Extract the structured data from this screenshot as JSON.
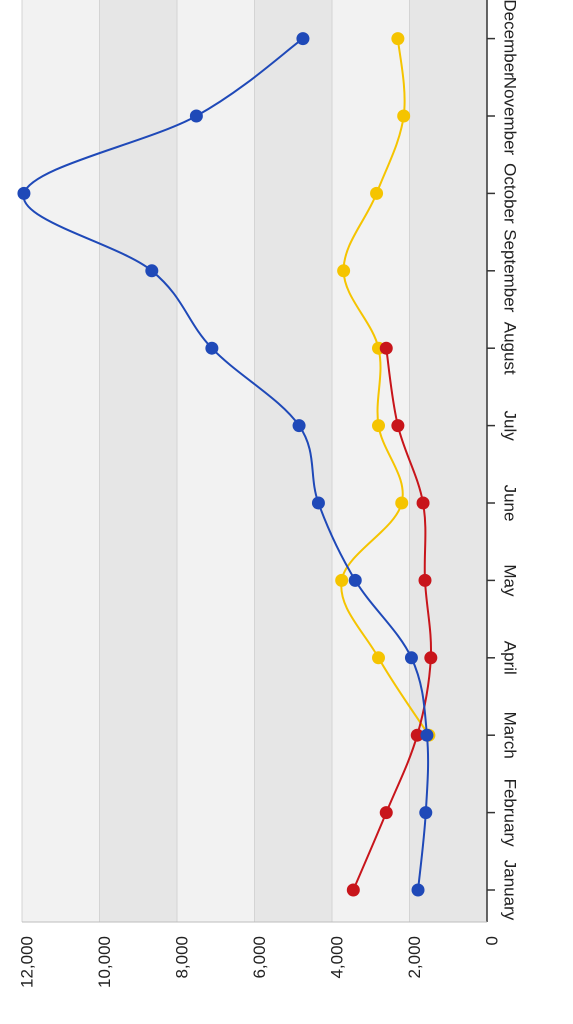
{
  "chart_data": {
    "type": "line",
    "orientation": "rotated-90-clockwise",
    "categories": [
      "January",
      "February",
      "March",
      "April",
      "May",
      "June",
      "July",
      "August",
      "September",
      "October",
      "November",
      "December"
    ],
    "yticks": [
      "0",
      "2,000",
      "4,000",
      "6,000",
      "8,000",
      "10,000",
      "12,000"
    ],
    "ylim": [
      0,
      12000
    ],
    "grid": true,
    "series": [
      {
        "color": "#1f49b8",
        "values": [
          1780,
          1580,
          1550,
          1950,
          3400,
          4350,
          4850,
          7100,
          8650,
          11950,
          7500,
          4750
        ],
        "curve": "smooth"
      },
      {
        "color": "#f5c400",
        "values": [
          null,
          null,
          1500,
          2800,
          3750,
          2200,
          2800,
          2800,
          3700,
          2850,
          2150,
          2300
        ],
        "curve": "smooth"
      },
      {
        "color": "#c8151b",
        "values": [
          3450,
          2600,
          1800,
          1450,
          1600,
          1650,
          2300,
          2600,
          null,
          null,
          null,
          null
        ],
        "curve": "smooth"
      }
    ],
    "colors": {
      "plot_band_light": "#f2f2f2",
      "plot_band_dark": "#e6e6e6",
      "gridline": "#d4d4d4",
      "axis": "#333333"
    }
  }
}
